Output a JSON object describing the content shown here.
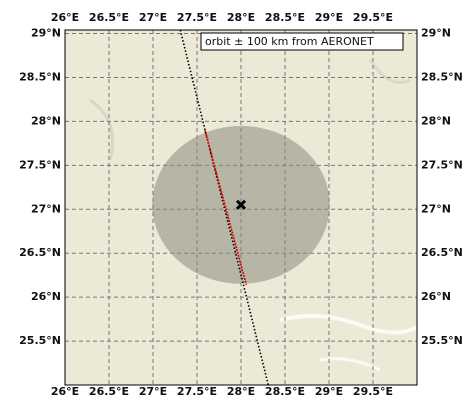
{
  "map": {
    "legend": "orbit ± 100 km from AERONET",
    "lon_range": [
      26,
      30
    ],
    "lat_range": [
      25,
      29.04
    ],
    "lon_ticks": [
      {
        "value": 26,
        "label": "26°E"
      },
      {
        "value": 26.5,
        "label": "26.5°E"
      },
      {
        "value": 27,
        "label": "27°E"
      },
      {
        "value": 27.5,
        "label": "27.5°E"
      },
      {
        "value": 28,
        "label": "28°E"
      },
      {
        "value": 28.5,
        "label": "28.5°E"
      },
      {
        "value": 29,
        "label": "29°E"
      },
      {
        "value": 29.5,
        "label": "29.5°E"
      }
    ],
    "lat_ticks": [
      {
        "value": 25.5,
        "label": "25.5°N"
      },
      {
        "value": 26,
        "label": "26°N"
      },
      {
        "value": 26.5,
        "label": "26.5°N"
      },
      {
        "value": 27,
        "label": "27°N"
      },
      {
        "value": 27.5,
        "label": "27.5°N"
      },
      {
        "value": 28,
        "label": "28°N"
      },
      {
        "value": 28.5,
        "label": "28.5°N"
      },
      {
        "value": 29,
        "label": "29°N"
      }
    ],
    "site": {
      "lon": 28.0,
      "lat": 27.05
    },
    "circle": {
      "lon": 28.0,
      "lat": 27.05,
      "radius_km": 100,
      "color": "#8a8a80"
    },
    "orbit": {
      "lon": [
        27.31,
        28.31
      ],
      "lat": [
        29.04,
        25.0
      ],
      "color": "#000000"
    },
    "match": {
      "lon": [
        27.59,
        28.06
      ],
      "lat": [
        27.9,
        26.14
      ],
      "color": "#e00000"
    }
  }
}
